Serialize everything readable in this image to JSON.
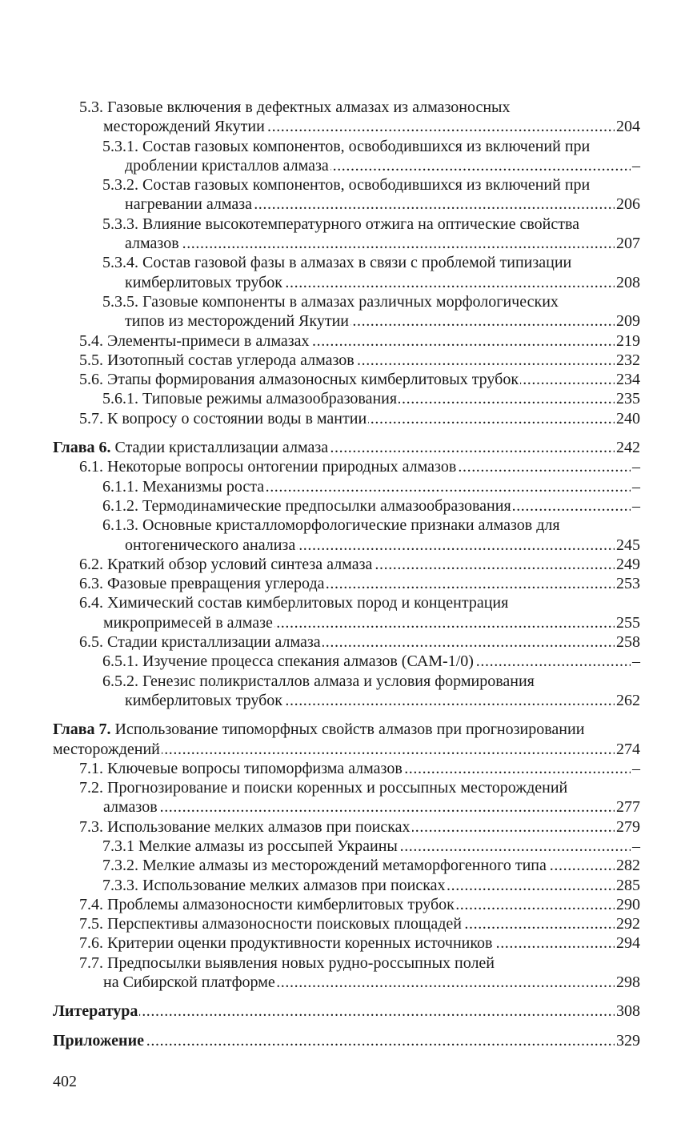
{
  "toc": [
    {
      "level": 1,
      "num": "5.3.",
      "lines": [
        "Газовые включения в дефектных алмазах из алмазоносных",
        "месторождений Якутии"
      ],
      "page": "204"
    },
    {
      "level": 2,
      "num": "5.3.1.",
      "lines": [
        "Состав газовых компонентов, освободившихся из включений при",
        "дроблении кристаллов алмаза"
      ],
      "page": "–"
    },
    {
      "level": 2,
      "num": "5.3.2.",
      "lines": [
        "Состав газовых компонентов, освободившихся из включений при",
        "нагревании алмаза"
      ],
      "page": "206"
    },
    {
      "level": 2,
      "num": "5.3.3.",
      "lines": [
        "Влияние высокотемпературного отжига на оптические свойства",
        "алмазов"
      ],
      "page": "207"
    },
    {
      "level": 2,
      "num": "5.3.4.",
      "lines": [
        "Состав газовой фазы в алмазах в связи с проблемой типизации",
        "кимберлитовых трубок"
      ],
      "page": "208"
    },
    {
      "level": 2,
      "num": "5.3.5.",
      "lines": [
        "Газовые компоненты в алмазах различных морфологических",
        "типов из месторождений Якутии"
      ],
      "page": "209"
    },
    {
      "level": 1,
      "num": "5.4.",
      "lines": [
        "Элементы-примеси в алмазах"
      ],
      "page": "219"
    },
    {
      "level": 1,
      "num": "5.5.",
      "lines": [
        "Изотопный состав углерода алмазов"
      ],
      "page": "232"
    },
    {
      "level": 1,
      "num": "5.6.",
      "lines": [
        "Этапы формирования алмазоносных кимберлитовых трубок"
      ],
      "page": "234"
    },
    {
      "level": 2,
      "num": "5.6.1.",
      "lines": [
        "Типовые режимы алмазообразования"
      ],
      "page": "235"
    },
    {
      "level": 1,
      "num": "5.7. ",
      "lines": [
        "К вопросу о состоянии воды в мантии"
      ],
      "page": "240"
    },
    {
      "level": 0,
      "num": "Глава 6.",
      "lines": [
        "Стадии кристаллизации алмаза"
      ],
      "page": "242"
    },
    {
      "level": 1,
      "num": "6.1.",
      "lines": [
        "Некоторые вопросы онтогении природных алмазов"
      ],
      "page": "–"
    },
    {
      "level": 2,
      "num": "6.1.1.",
      "lines": [
        "Механизмы роста"
      ],
      "page": "–"
    },
    {
      "level": 2,
      "num": "6.1.2.",
      "lines": [
        "Термодинамические предпосылки алмазообразования"
      ],
      "page": "–"
    },
    {
      "level": 2,
      "num": "6.1.3.",
      "lines": [
        "Основные кристалломорфологические признаки алмазов для",
        "онтогенического анализа"
      ],
      "page": "245"
    },
    {
      "level": 1,
      "num": "6.2.",
      "lines": [
        "Краткий обзор условий синтеза алмаза"
      ],
      "page": "249"
    },
    {
      "level": 1,
      "num": "6.3.",
      "lines": [
        "Фазовые превращения углерода"
      ],
      "page": "253"
    },
    {
      "level": 1,
      "num": "6.4.",
      "lines": [
        "Химический состав кимберлитовых пород и концентрация",
        "микропримесей в алмазе"
      ],
      "page": "255"
    },
    {
      "level": 1,
      "num": "6.5.",
      "lines": [
        "Стадии кристаллизации алмаза"
      ],
      "page": "258"
    },
    {
      "level": 2,
      "num": "6.5.1.",
      "lines": [
        "Изучение процесса спекания алмазов (САМ-1/0)"
      ],
      "page": "–"
    },
    {
      "level": 2,
      "num": "6.5.2.",
      "lines": [
        "Генезис поликристаллов алмаза и условия формирования",
        "кимберлитовых трубок"
      ],
      "page": "262"
    },
    {
      "level": 0,
      "num": "Глава 7.",
      "lines": [
        "Использование типоморфных свойств алмазов при прогнозировании",
        "месторождений"
      ],
      "page": "274"
    },
    {
      "level": 1,
      "num": "7.1.",
      "lines": [
        "Ключевые вопросы типоморфизма алмазов"
      ],
      "page": "–"
    },
    {
      "level": 1,
      "num": "7.2.",
      "lines": [
        "Прогнозирование и поиски коренных и россыпных месторождений",
        "алмазов"
      ],
      "page": "277"
    },
    {
      "level": 1,
      "num": "7.3.",
      "lines": [
        "Использование мелких алмазов при поисках"
      ],
      "page": "279"
    },
    {
      "level": 2,
      "num": "7.3.1",
      "lines": [
        "Мелкие алмазы из россыпей Украины"
      ],
      "page": "–"
    },
    {
      "level": 2,
      "num": "7.3.2.",
      "lines": [
        "Мелкие алмазы из месторождений метаморфогенного типа"
      ],
      "page": "282"
    },
    {
      "level": 2,
      "num": "7.3.3.",
      "lines": [
        "Использование мелких алмазов при поисках"
      ],
      "page": "285"
    },
    {
      "level": 1,
      "num": "7.4.",
      "lines": [
        "Проблемы алмазоносности кимберлитовых трубок"
      ],
      "page": "290"
    },
    {
      "level": 1,
      "num": "7.5.",
      "lines": [
        "Перспективы алмазоносности поисковых площадей"
      ],
      "page": "292"
    },
    {
      "level": 1,
      "num": "7.6.",
      "lines": [
        "Критерии оценки продуктивности коренных источников"
      ],
      "page": "294"
    },
    {
      "level": 1,
      "num": "7.7.",
      "lines": [
        "Предпосылки выявления новых рудно-россыпных полей",
        "на Сибирской платформе"
      ],
      "page": "298"
    },
    {
      "level": 0,
      "num": "Литература",
      "lines": [
        ""
      ],
      "page": "308"
    },
    {
      "level": 0,
      "num": "Приложение",
      "lines": [
        ""
      ],
      "page": "329"
    }
  ],
  "page_number": "402"
}
